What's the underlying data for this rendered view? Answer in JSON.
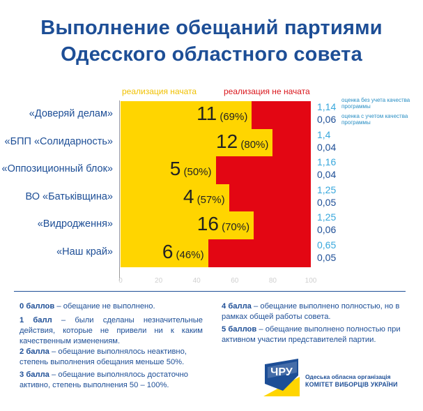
{
  "title": {
    "line1": "Выполнение обещаний партиями",
    "line2": "Одесского областного совета"
  },
  "legend": {
    "started": "реализация начата",
    "not_started": "реализация не начата",
    "note_without_quality": "оценка без учета качества программы",
    "note_with_quality": "оценка с учетом качества программы"
  },
  "colors": {
    "started": "#ffd500",
    "not_started": "#e30613",
    "title": "#1d4e96",
    "score_without_quality": "#37a7dc",
    "score_with_quality": "#1d4e96"
  },
  "chart_data": {
    "type": "bar",
    "orientation": "horizontal",
    "stacked": true,
    "xlim": [
      0,
      100
    ],
    "x_ticks": [
      "0",
      "20",
      "40",
      "60",
      "80",
      "100"
    ],
    "categories": [
      "«Доверяй делам»",
      "«БПП «Солидарность»",
      "«Оппозиционный блок»",
      "ВО «Батьківщина»",
      "«Видродження»",
      "«Наш край»"
    ],
    "series": [
      {
        "name": "реализация начата",
        "values": [
          69,
          80,
          50,
          57,
          70,
          46
        ]
      },
      {
        "name": "реализация не начата",
        "values": [
          31,
          20,
          50,
          43,
          30,
          54
        ]
      }
    ],
    "counts": [
      "11",
      "12",
      "5",
      "4",
      "16",
      "6"
    ],
    "percent_labels": [
      "(69%)",
      "(80%)",
      "(50%)",
      "(57%)",
      "(70%)",
      "(46%)"
    ],
    "score_without_quality": [
      "1,14",
      "1,4",
      "1,16",
      "1,25",
      "1,25",
      "0,65"
    ],
    "score_with_quality": [
      "0,06",
      "0,04",
      "0,04",
      "0,05",
      "0,06",
      "0,05"
    ]
  },
  "scale": {
    "s0": {
      "term": "0 баллов",
      "text": " – обещание не выполнено."
    },
    "s1": {
      "term": "1 балл",
      "text": " – были сделаны незначительные действия, которые не привели ни к каким качественным изменениям."
    },
    "s2": {
      "term": "2 балла",
      "text": " – обещание выполнялось неактивно, степень выполнения обещания меньше 50%."
    },
    "s3": {
      "term": "3 балла",
      "text": " – обещание выполнялось достаточно активно, степень выполнения 50 – 100%."
    },
    "s4": {
      "term": "4 балла",
      "text": " – обещание выполнено полностью, но в рамках общей работы совета."
    },
    "s5": {
      "term": "5 баллов",
      "text": " – обещание выполнено полностью при активном участии представителей партии."
    }
  },
  "organization": {
    "logo_text": "ЧРУ",
    "line1": "Одеська обласна організація",
    "line2": "КОМІТЕТ ВИБОРЦІВ УКРАЇНИ"
  }
}
